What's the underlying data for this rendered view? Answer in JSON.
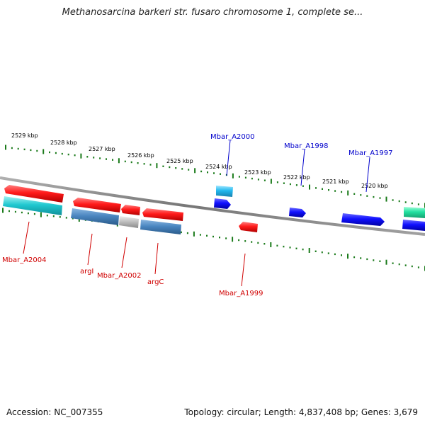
{
  "title": "Methanosarcina barkeri str. fusaro chromosome 1, complete se...",
  "footer": {
    "accession": "Accession: NC_007355",
    "summary": "Topology: circular; Length: 4,837,408 bp; Genes: 3,679"
  },
  "colors": {
    "forward_gene": "#ff1a1a",
    "reverse_gene": "#1a1aff",
    "cds_cyan": "#20c8d0",
    "cds_steel": "#4a86c0",
    "cds_gray": "#bbbbbb",
    "cds_light_blue": "#22b8ee",
    "cds_green": "#22e0a0",
    "backbone": "#808080",
    "tick": "#1a7a1a",
    "label_red": "#d00000",
    "label_blue": "#0000cc"
  },
  "scale_labels": [
    "2529 kbp",
    "2528 kbp",
    "2527 kbp",
    "2526 kbp",
    "2525 kbp",
    "2524 kbp",
    "2523 kbp",
    "2522 kbp",
    "2521 kbp",
    "2520 kbp"
  ],
  "gene_labels": {
    "Mbar_A2000": "Mbar_A2000",
    "Mbar_A1998": "Mbar_A1998",
    "Mbar_A1997": "Mbar_A1997",
    "Mbar_A2004": "Mbar_A2004",
    "argI": "argI",
    "Mbar_A2002": "Mbar_A2002",
    "argC": "argC",
    "Mbar_A1999": "Mbar_A1999"
  }
}
